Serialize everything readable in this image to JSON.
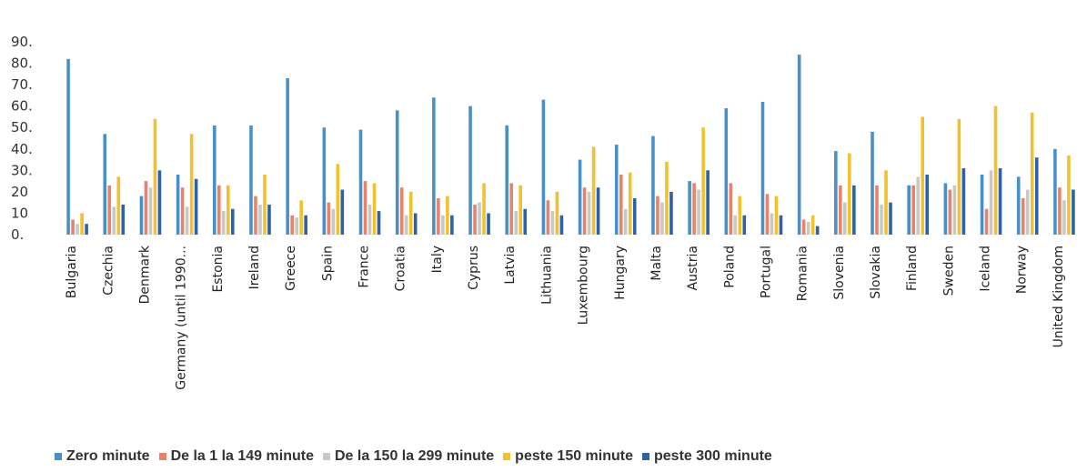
{
  "chart_data": {
    "type": "bar",
    "ylim": [
      0,
      90
    ],
    "yticks": [
      "0.",
      "10",
      "20",
      "30.",
      "40.",
      "50.",
      "60.",
      "70.",
      "80.",
      "90."
    ],
    "categories": [
      "Bulgaria",
      "Czechia",
      "Denmark",
      "Germany (until 1990...",
      "Estonia",
      "Ireland",
      "Greece",
      "Spain",
      "France",
      "Croatia",
      "Italy",
      "Cyprus",
      "Latvia",
      "Lithuania",
      "Luxembourg",
      "Hungary",
      "Malta",
      "Austria",
      "Poland",
      "Portugal",
      "Romania",
      "Slovenia",
      "Slovakia",
      "Finland",
      "Sweden",
      "Iceland",
      "Norway",
      "United Kingdom"
    ],
    "series": [
      {
        "name": "Zero minute",
        "color": "#4a90c8",
        "values": [
          82,
          47,
          18,
          28,
          51,
          51,
          73,
          50,
          49,
          58,
          64,
          60,
          51,
          63,
          35,
          42,
          46,
          25,
          59,
          62,
          84,
          39,
          48,
          23,
          24,
          28,
          27,
          40
        ]
      },
      {
        "name": "De la 1 la 149 minute",
        "color": "#e8826a",
        "values": [
          7,
          23,
          25,
          22,
          23,
          18,
          9,
          15,
          25,
          22,
          17,
          14,
          24,
          16,
          22,
          28,
          18,
          24,
          24,
          19,
          7,
          23,
          23,
          23,
          21,
          12,
          17,
          22
        ]
      },
      {
        "name": "De la 150 la 299 minute",
        "color": "#c8c8c8",
        "values": [
          5,
          13,
          22,
          13,
          11,
          14,
          8,
          12,
          14,
          9,
          9,
          15,
          11,
          11,
          20,
          12,
          15,
          21,
          9,
          10,
          6,
          15,
          14,
          27,
          23,
          30,
          21,
          16
        ]
      },
      {
        "name": "peste 150 minute",
        "color": "#f2c12e",
        "values": [
          10,
          27,
          54,
          47,
          23,
          28,
          16,
          33,
          24,
          20,
          18,
          24,
          23,
          20,
          41,
          29,
          34,
          50,
          18,
          18,
          9,
          38,
          30,
          55,
          54,
          60,
          57,
          37
        ]
      },
      {
        "name": "peste 300 minute",
        "color": "#2e62a8",
        "values": [
          5,
          14,
          30,
          26,
          12,
          14,
          9,
          21,
          11,
          10,
          9,
          10,
          12,
          9,
          22,
          17,
          20,
          30,
          9,
          9,
          4,
          23,
          15,
          28,
          31,
          31,
          36,
          21
        ]
      }
    ]
  }
}
